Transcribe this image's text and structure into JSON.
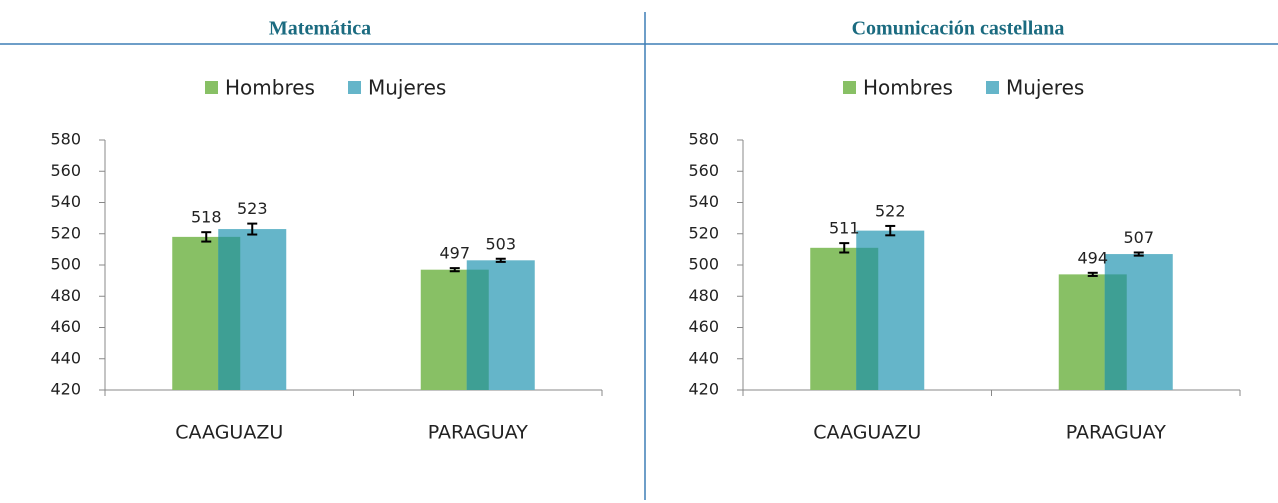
{
  "chart_data": [
    {
      "type": "bar",
      "title": "Matemática",
      "categories": [
        "CAAGUAZU",
        "PARAGUAY"
      ],
      "series": [
        {
          "name": "Hombres",
          "color": "#88c065",
          "values": [
            518,
            497
          ],
          "errors": [
            3,
            1
          ]
        },
        {
          "name": "Mujeres",
          "color": "#65b5c9",
          "values": [
            523,
            503
          ],
          "errors": [
            3.5,
            1
          ]
        }
      ],
      "ylim": [
        420,
        580
      ],
      "yticks": [
        420,
        440,
        460,
        480,
        500,
        520,
        540,
        560,
        580
      ]
    },
    {
      "type": "bar",
      "title": "Comunicación castellana",
      "categories": [
        "CAAGUAZU",
        "PARAGUAY"
      ],
      "series": [
        {
          "name": "Hombres",
          "color": "#88c065",
          "values": [
            511,
            494
          ],
          "errors": [
            3,
            1
          ]
        },
        {
          "name": "Mujeres",
          "color": "#65b5c9",
          "values": [
            522,
            507
          ],
          "errors": [
            3,
            1
          ]
        }
      ],
      "ylim": [
        420,
        580
      ],
      "yticks": [
        420,
        440,
        460,
        480,
        500,
        520,
        540,
        560,
        580
      ]
    }
  ]
}
